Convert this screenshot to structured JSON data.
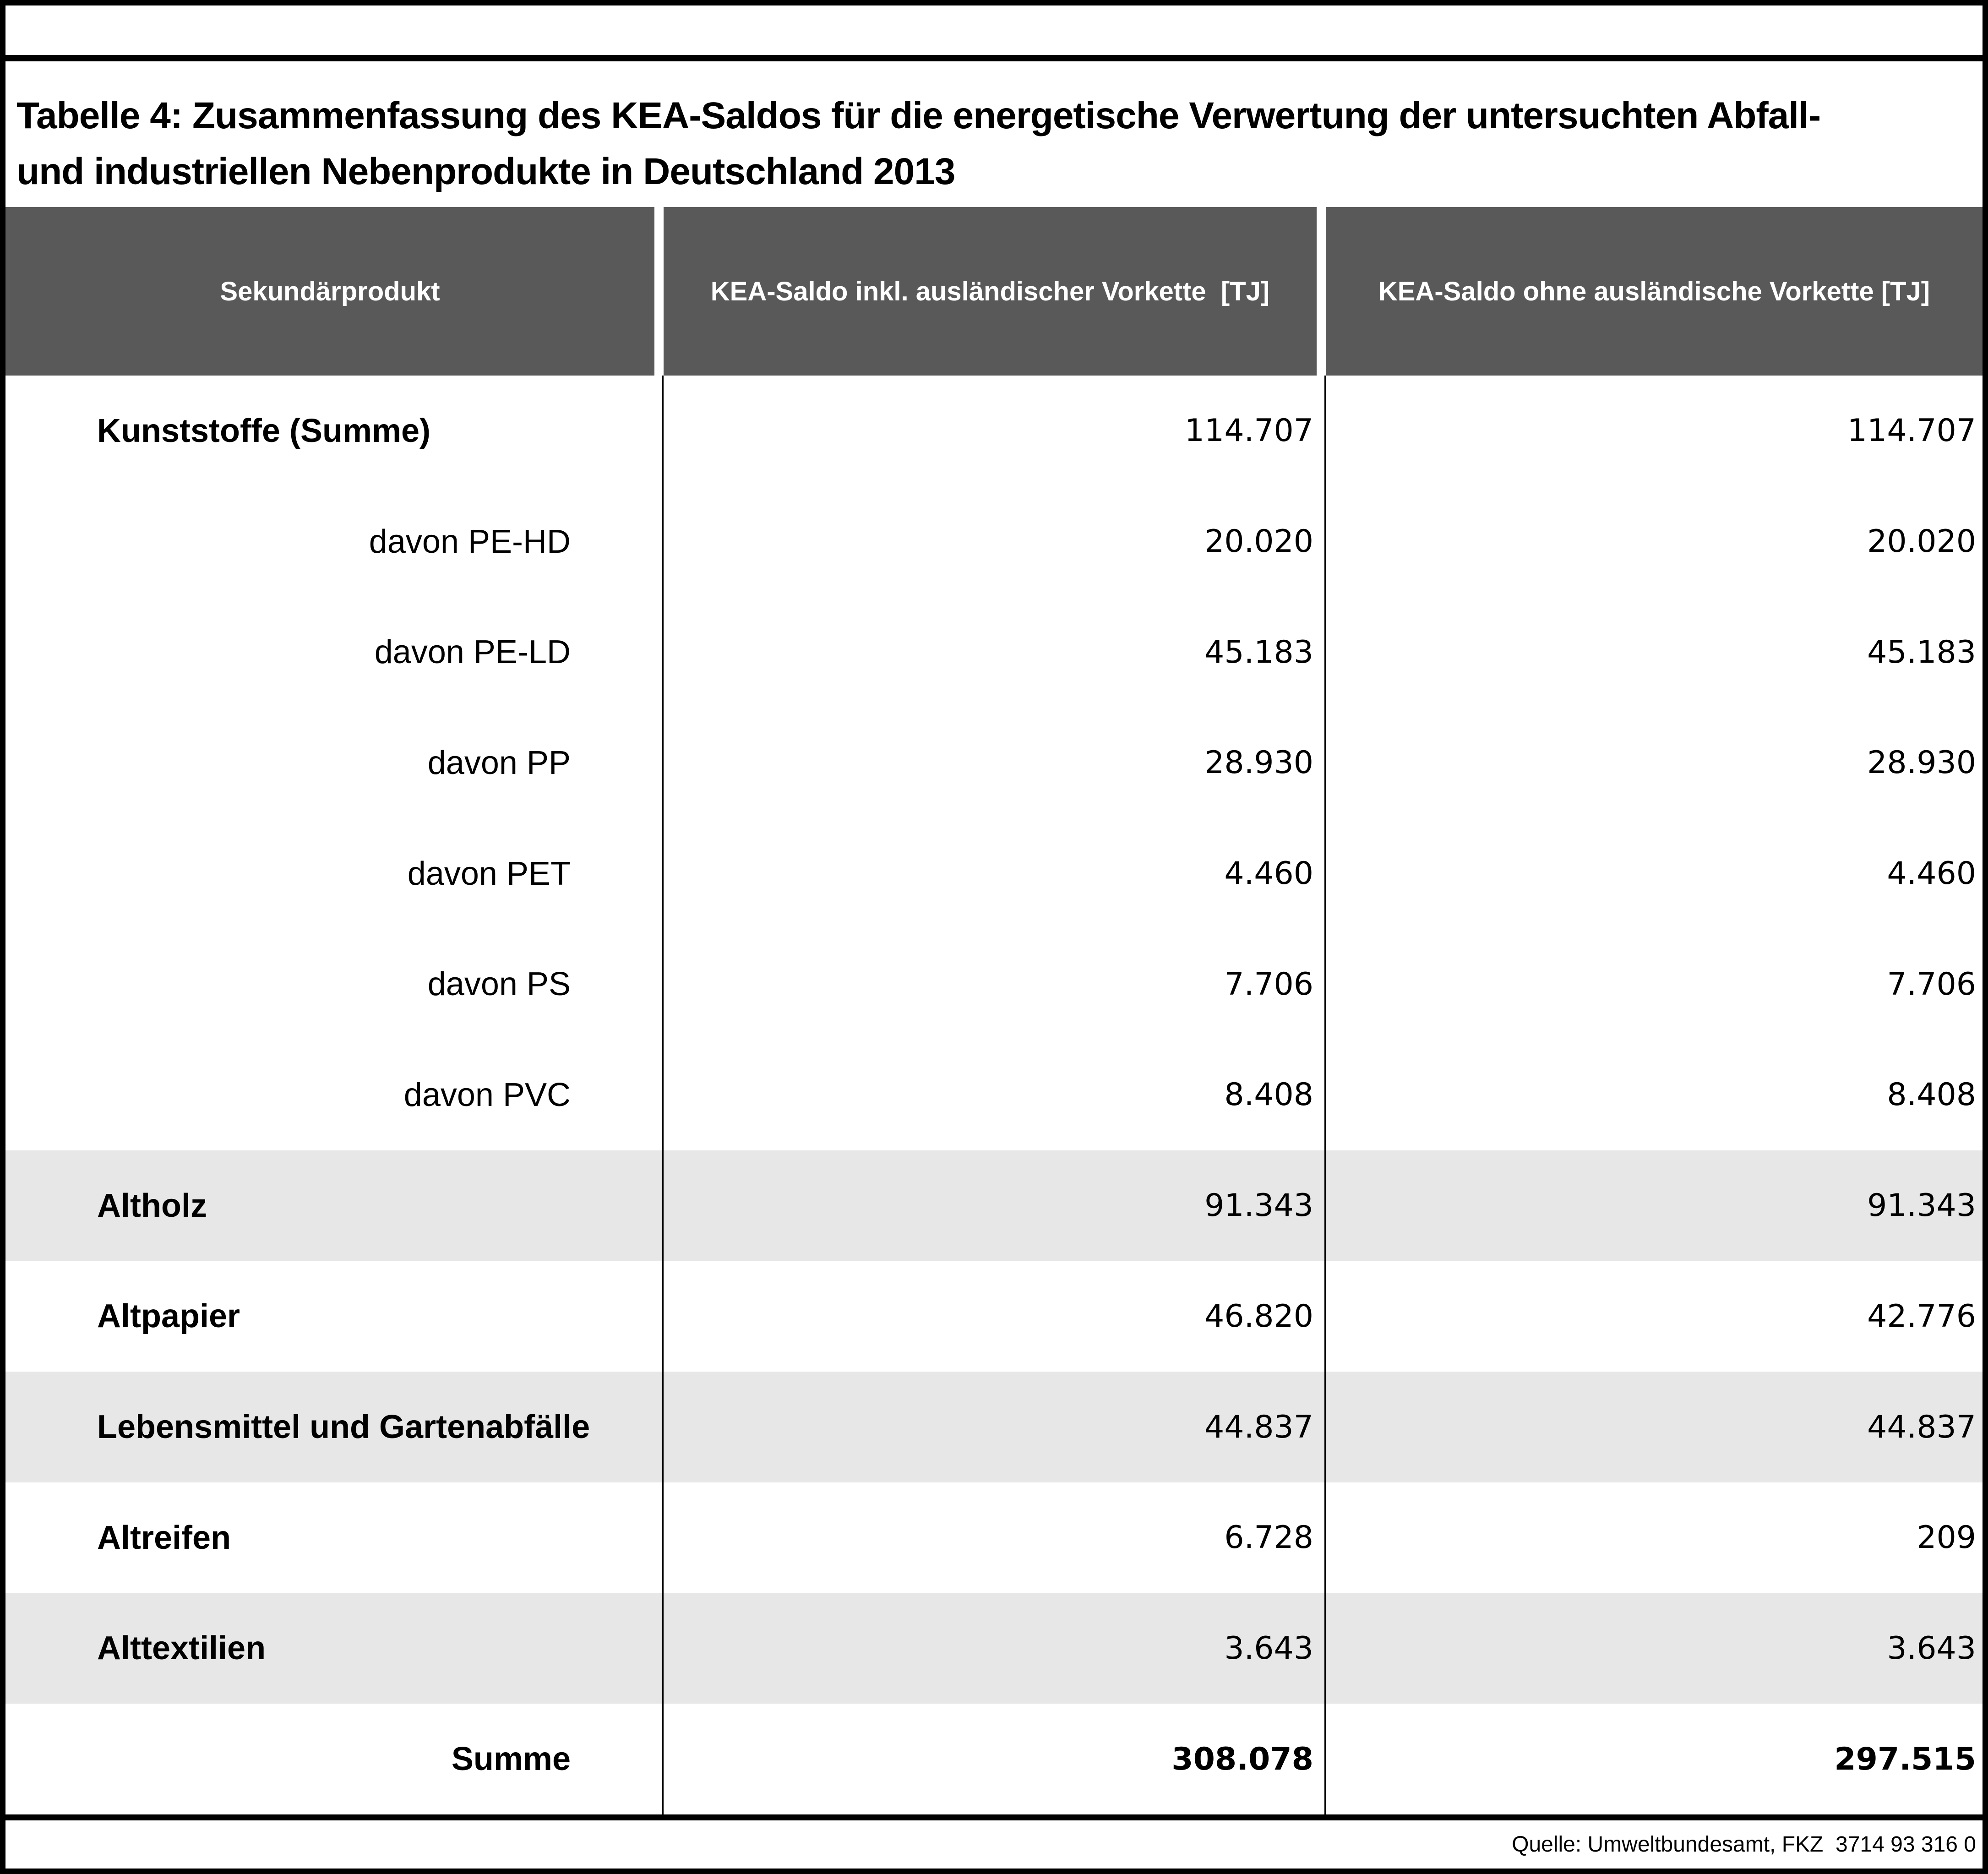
{
  "title": {
    "line1": "Tabelle 4: Zusammenfassung des KEA-Saldos für die energetische Verwertung der untersuchten Abfall-",
    "line2": "und industriellen Nebenprodukte in Deutschland 2013"
  },
  "table": {
    "columns": [
      "Sekundärprodukt",
      "KEA-Saldo inkl. ausländischer Vorkette  [TJ]",
      "KEA-Saldo ohne ausländische Vorkette [TJ]"
    ],
    "rows": [
      {
        "label": "Kunststoffe (Summe)",
        "incl": "114.707",
        "excl": "114.707",
        "style": "main",
        "shaded": false
      },
      {
        "label": "davon PE-HD",
        "incl": "20.020",
        "excl": "20.020",
        "style": "sub",
        "shaded": false
      },
      {
        "label": "davon PE-LD",
        "incl": "45.183",
        "excl": "45.183",
        "style": "sub",
        "shaded": false
      },
      {
        "label": "davon PP",
        "incl": "28.930",
        "excl": "28.930",
        "style": "sub",
        "shaded": false
      },
      {
        "label": "davon PET",
        "incl": "4.460",
        "excl": "4.460",
        "style": "sub",
        "shaded": false
      },
      {
        "label": "davon PS",
        "incl": "7.706",
        "excl": "7.706",
        "style": "sub",
        "shaded": false
      },
      {
        "label": "davon PVC",
        "incl": "8.408",
        "excl": "8.408",
        "style": "sub",
        "shaded": false
      },
      {
        "label": "Altholz",
        "incl": "91.343",
        "excl": "91.343",
        "style": "main",
        "shaded": true
      },
      {
        "label": "Altpapier",
        "incl": "46.820",
        "excl": "42.776",
        "style": "main",
        "shaded": false
      },
      {
        "label": "Lebensmittel und Gartenabfälle",
        "incl": "44.837",
        "excl": "44.837",
        "style": "main",
        "shaded": true
      },
      {
        "label": "Altreifen",
        "incl": "6.728",
        "excl": "209",
        "style": "main",
        "shaded": false
      },
      {
        "label": "Alttextilien",
        "incl": "3.643",
        "excl": "3.643",
        "style": "main",
        "shaded": true
      },
      {
        "label": "Summe",
        "incl": "308.078",
        "excl": "297.515",
        "style": "total",
        "shaded": false
      }
    ]
  },
  "chart_data": {
    "type": "table",
    "title": "Tabelle 4: Zusammenfassung des KEA-Saldos für die energetische Verwertung der untersuchten Abfall- und industriellen Nebenprodukte in Deutschland 2013",
    "columns": [
      "Sekundärprodukt",
      "KEA-Saldo inkl. ausländischer Vorkette [TJ]",
      "KEA-Saldo ohne ausländische Vorkette [TJ]"
    ],
    "values_incl": [
      114707,
      20020,
      45183,
      28930,
      4460,
      7706,
      8408,
      91343,
      46820,
      44837,
      6728,
      3643,
      308078
    ],
    "values_excl": [
      114707,
      20020,
      45183,
      28930,
      4460,
      7706,
      8408,
      91343,
      42776,
      44837,
      209,
      3643,
      297515
    ]
  },
  "footer": {
    "source": "Quelle: Umweltbundesamt, FKZ  3714 93 316 0"
  },
  "colors": {
    "header_bg": "#595959",
    "header_text": "#ffffff",
    "shaded_row": "#e7e7e7",
    "border": "#000000"
  }
}
